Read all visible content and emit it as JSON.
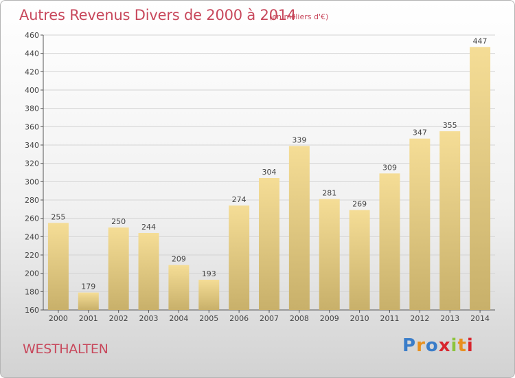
{
  "header": {
    "title": "Autres Revenus Divers de 2000 à 2014",
    "subtitle": "(en milliers d'€)"
  },
  "commune": "WESTHALTEN",
  "logo": {
    "text": "Proxiti",
    "letter_colors": [
      "#3a7dc9",
      "#e8901e",
      "#3a7dc9",
      "#d8252d",
      "#8cc43c",
      "#e8901e",
      "#d8252d"
    ]
  },
  "colors": {
    "title": "#c8485c",
    "bar_light": "#f5dd96",
    "bar_dark": "#c8b06a",
    "grid": "#d4d4d4"
  },
  "chart_data": {
    "type": "bar",
    "categories": [
      "2000",
      "2001",
      "2002",
      "2003",
      "2004",
      "2005",
      "2006",
      "2007",
      "2008",
      "2009",
      "2010",
      "2011",
      "2012",
      "2013",
      "2014"
    ],
    "values": [
      255,
      179,
      250,
      244,
      209,
      193,
      274,
      304,
      339,
      281,
      269,
      309,
      347,
      355,
      447
    ],
    "ylim": [
      160,
      460
    ],
    "yticks": [
      160,
      180,
      200,
      220,
      240,
      260,
      280,
      300,
      320,
      340,
      360,
      380,
      400,
      420,
      440,
      460
    ],
    "grid": true,
    "data_labels": true
  }
}
